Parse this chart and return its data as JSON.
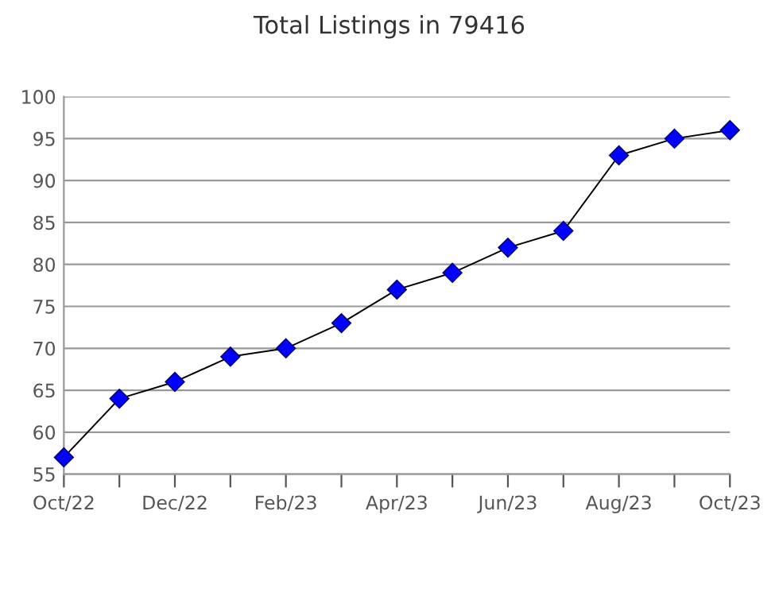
{
  "chart_data": {
    "type": "line",
    "title": "Total Listings in 79416",
    "categories": [
      "Oct/22",
      null,
      "Dec/22",
      null,
      "Feb/23",
      null,
      "Apr/23",
      null,
      "Jun/23",
      null,
      "Aug/23",
      null,
      "Oct/23"
    ],
    "series": [
      {
        "color": "#0000ff",
        "values": [
          57,
          64,
          66,
          69,
          70,
          73,
          77,
          79,
          82,
          84,
          93,
          95,
          96
        ]
      }
    ],
    "ylim": [
      55,
      100
    ],
    "yticks": [
      55,
      60,
      65,
      70,
      75,
      80,
      85,
      90,
      95,
      100
    ],
    "grid": "y",
    "marker": "diamond",
    "line_style": "solid"
  }
}
